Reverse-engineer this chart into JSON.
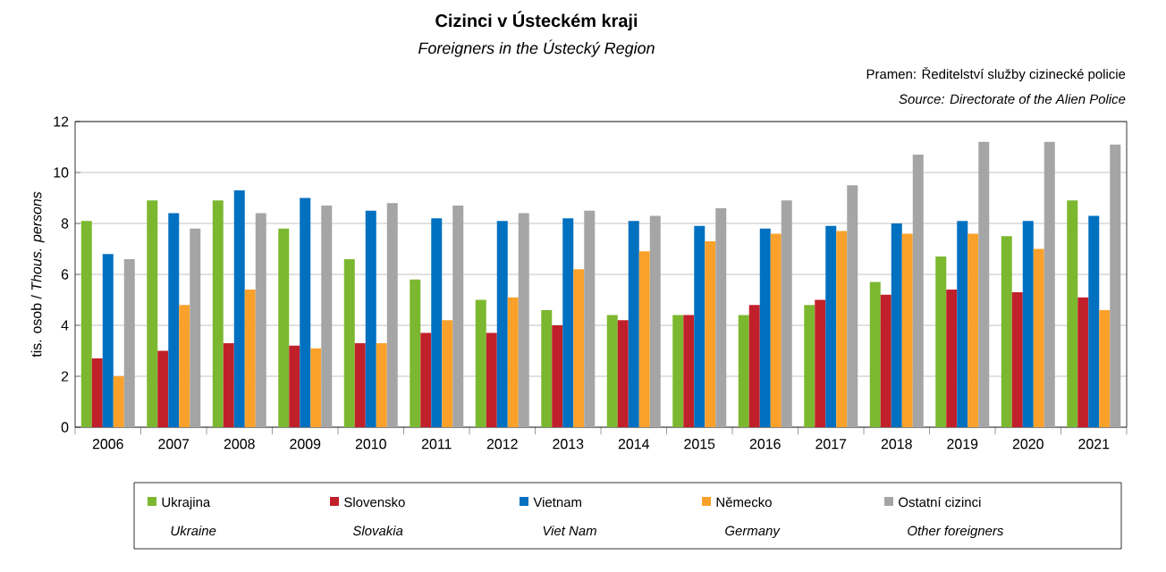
{
  "chart_data": {
    "type": "bar",
    "title": "Cizinci v Ústeckém kraji",
    "subtitle": "Foreigners  in  the Ústecký Region",
    "ylabel": "tis. osob / *Thous. persons*",
    "annotations": [
      "Pramen: Ředitelství služby cizinecké policie",
      "*Source: Directorate of the Alien Police*",
      "*Ukraine*",
      "*Slovakia*",
      "*Viet Nam*",
      "*Germany*",
      "*Other foreigners*"
    ],
    "categories": [
      "2006",
      "2007",
      "2008",
      "2009",
      "2010",
      "2011",
      "2012",
      "2013",
      "2014",
      "2015",
      "2016",
      "2017",
      "2018",
      "2019",
      "2020",
      "2021"
    ],
    "series": [
      {
        "name": "Ukrajina",
        "color": "#7cb82f",
        "values": [
          8.1,
          8.9,
          8.9,
          7.8,
          6.6,
          5.8,
          5.0,
          4.6,
          4.4,
          4.4,
          4.4,
          4.8,
          5.7,
          6.7,
          7.5,
          8.9
        ]
      },
      {
        "name": "Slovensko",
        "color": "#c0202a",
        "values": [
          2.7,
          3.0,
          3.3,
          3.2,
          3.3,
          3.7,
          3.7,
          4.0,
          4.2,
          4.4,
          4.8,
          5.0,
          5.2,
          5.4,
          5.3,
          5.1
        ]
      },
      {
        "name": "Vietnam",
        "color": "#0070c0",
        "values": [
          6.8,
          8.4,
          9.3,
          9.0,
          8.5,
          8.2,
          8.1,
          8.2,
          8.1,
          7.9,
          7.8,
          7.9,
          8.0,
          8.1,
          8.1,
          8.3
        ]
      },
      {
        "name": "Německo",
        "color": "#f9a12b",
        "values": [
          2.0,
          4.8,
          5.4,
          3.1,
          3.3,
          4.2,
          5.1,
          6.2,
          6.9,
          7.3,
          7.6,
          7.7,
          7.6,
          7.6,
          7.0,
          4.6
        ]
      },
      {
        "name": "Ostatní cizinci",
        "color": "#a5a5a5",
        "values": [
          6.6,
          7.8,
          8.4,
          8.7,
          8.8,
          8.7,
          8.4,
          8.5,
          8.3,
          8.6,
          8.9,
          9.5,
          10.7,
          11.2,
          11.2,
          11.1
        ]
      }
    ],
    "ylim": [
      0,
      12
    ],
    "yticks": [
      0,
      2,
      4,
      6,
      8,
      10,
      12
    ],
    "grid": "y",
    "legend": "bottom"
  }
}
